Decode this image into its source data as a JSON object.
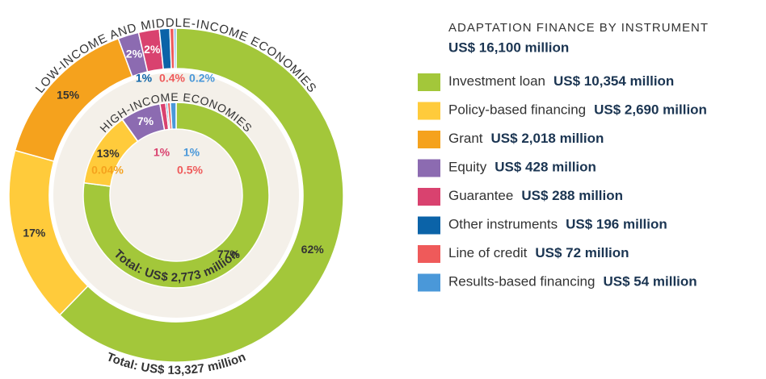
{
  "chart_data": {
    "type": "nested-donut",
    "title": "ADAPTATION FINANCE BY INSTRUMENT",
    "subtitle": "US$ 16,100 million",
    "categories": [
      "Investment loan",
      "Policy-based financing",
      "Grant",
      "Equity",
      "Guarantee",
      "Other instruments",
      "Line of credit",
      "Results-based financing"
    ],
    "colors": [
      "#a3c73a",
      "#ffcb3b",
      "#f5a21d",
      "#8c6bb1",
      "#d9426f",
      "#0b63a8",
      "#ef5a5a",
      "#4a98d9"
    ],
    "amount_labels": [
      "US$ 10,354 million",
      "US$ 2,690 million",
      "US$ 2,018 million",
      "US$ 428 million",
      "US$ 288 million",
      "US$ 196 million",
      "US$ 72 million",
      "US$ 54 million"
    ],
    "rings": [
      {
        "name": "LOW-INCOME AND MIDDLE-INCOME ECONOMIES",
        "total_label": "Total: US$ 13,327 million",
        "values": [
          62,
          17,
          15,
          2,
          2,
          1,
          0.4,
          0.2
        ],
        "value_labels": [
          "62%",
          "17%",
          "15%",
          "2%",
          "2%",
          "1%",
          "0.4%",
          "0.2%"
        ]
      },
      {
        "name": "HIGH-INCOME ECONOMIES",
        "total_label": "Total: US$ 2,773 million",
        "values": [
          77,
          13,
          0.04,
          7,
          1,
          0.3,
          0.5,
          1
        ],
        "value_labels": [
          "77%",
          "13%",
          "0.04%",
          "7%",
          "1%",
          null,
          "0.5%",
          "1%"
        ]
      }
    ]
  }
}
